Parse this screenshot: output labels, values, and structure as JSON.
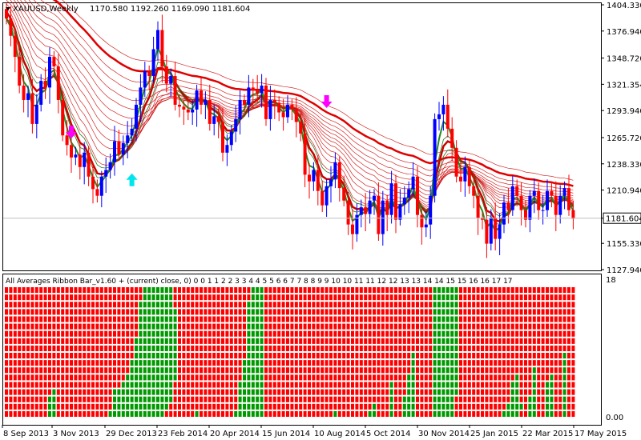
{
  "header": {
    "symbol": "XAUUSD,Weekly",
    "ohlc": "1170.580 1192.260 1169.090 1181.604",
    "indicator": "All Averages Ribbon Bar_v1.60 + (current) close, 0) 0 0 1 1 2 2 3 3 4 4 5 5 6 6 7 7 8 8 9 9 10 10 11 11 12 12 13 13 14 14 15 15 16 16 17 17"
  },
  "colors": {
    "bull": "#0000ff",
    "bear": "#ff0000",
    "ribbon": "#cc0000",
    "fast_ma": "#228b22",
    "slow_ma_gray": "#999999",
    "arrow_down": "#ff00ff",
    "arrow_up": "#00e5ee",
    "sub_red": "#ff0000",
    "sub_green": "#009900",
    "grid": "#c0c0c0"
  },
  "chart_data": [
    {
      "type": "candlestick",
      "title": "XAUUSD,Weekly",
      "y_ticks": [
        "1404.330",
        "1376.940",
        "1348.720",
        "1321.354",
        "1293.940",
        "1265.720",
        "1238.330",
        "1210.940",
        "1181.604",
        "1155.330",
        "1127.940"
      ],
      "x_ticks": [
        "8 Sep 2013",
        "3 Nov 2013",
        "29 Dec 2013",
        "23 Feb 2014",
        "20 Apr 2014",
        "15 Jun 2014",
        "10 Aug 2014",
        "5 Oct 2014",
        "30 Nov 2014",
        "25 Jan 2015",
        "22 Mar 2015",
        "17 May 2015"
      ],
      "ylim": [
        1120,
        1410
      ],
      "current_price": 1181.604,
      "closes": [
        1390,
        1372,
        1350,
        1320,
        1305,
        1312,
        1280,
        1300,
        1325,
        1318,
        1350,
        1340,
        1305,
        1268,
        1258,
        1245,
        1248,
        1235,
        1250,
        1225,
        1212,
        1205,
        1225,
        1232,
        1240,
        1262,
        1248,
        1260,
        1268,
        1275,
        1300,
        1318,
        1335,
        1330,
        1358,
        1378,
        1340,
        1322,
        1330,
        1300,
        1298,
        1295,
        1292,
        1295,
        1315,
        1300,
        1305,
        1280,
        1288,
        1282,
        1250,
        1258,
        1272,
        1285,
        1305,
        1300,
        1318,
        1315,
        1312,
        1320,
        1285,
        1305,
        1302,
        1292,
        1287,
        1300,
        1295,
        1282,
        1270,
        1227,
        1220,
        1232,
        1210,
        1195,
        1215,
        1222,
        1240,
        1213,
        1200,
        1175,
        1165,
        1185,
        1193,
        1186,
        1200,
        1205,
        1165,
        1200,
        1185,
        1218,
        1180,
        1196,
        1203,
        1212,
        1225,
        1185,
        1172,
        1175,
        1205,
        1285,
        1290,
        1300,
        1275,
        1255,
        1225,
        1220,
        1235,
        1215,
        1205,
        1182,
        1180,
        1155,
        1182,
        1160,
        1175,
        1198,
        1190,
        1215,
        1205,
        1190,
        1180,
        1205,
        1210,
        1190,
        1190,
        1210,
        1205,
        1185,
        1205,
        1213,
        1190,
        1181
      ],
      "fast_ma_range": [
        1160,
        1390
      ],
      "arrows": [
        {
          "type": "sell",
          "x": "3 Nov 2013 (≈)",
          "price": 1268
        },
        {
          "type": "buy",
          "x": "29 Dec 2013 (≈)",
          "price": 1225
        },
        {
          "type": "sell",
          "x": "10 Aug 2014 (≈)",
          "price": 1300
        }
      ]
    },
    {
      "type": "heatmap",
      "title": "All Averages Ribbon Bar_v1.60",
      "rows": 18,
      "y_ticks": [
        "18",
        "0.00"
      ],
      "values_legend": [
        "red = bearish average",
        "green = bullish average"
      ],
      "note": "columns follow price bars; each row is one moving-average period"
    }
  ]
}
